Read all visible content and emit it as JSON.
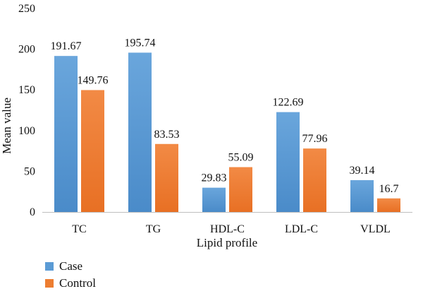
{
  "chart_data": {
    "type": "bar",
    "categories": [
      "TC",
      "TG",
      "HDL-C",
      "LDL-C",
      "VLDL"
    ],
    "series": [
      {
        "name": "Case",
        "values": [
          191.67,
          195.74,
          29.83,
          122.69,
          39.14
        ],
        "labels": [
          "191.67",
          "195.74",
          "29.83",
          "122.69",
          "39.14"
        ],
        "color": "#5b9bd5"
      },
      {
        "name": "Control",
        "values": [
          149.76,
          83.53,
          55.09,
          77.96,
          16.7
        ],
        "labels": [
          "149.76",
          "83.53",
          "55.09",
          "77.96",
          "16.7"
        ],
        "color": "#ed7d31"
      }
    ],
    "xlabel": "Lipid profile",
    "ylabel": "Mean value",
    "ylim": [
      0,
      250
    ],
    "yticks": [
      0,
      50,
      100,
      150,
      200,
      250
    ],
    "grid": false,
    "legend_position": "bottom-left"
  }
}
